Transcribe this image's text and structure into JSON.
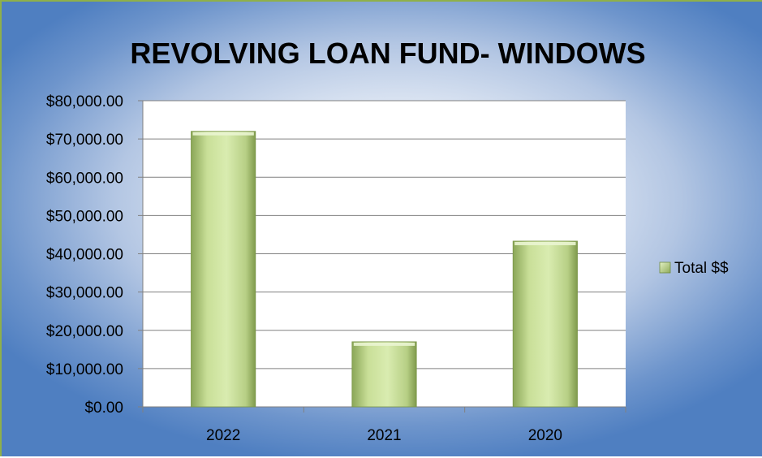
{
  "chart_data": {
    "type": "bar",
    "title": "REVOLVING LOAN FUND- WINDOWS",
    "categories": [
      "2022",
      "2021",
      "2020"
    ],
    "series": [
      {
        "name": "Total $$",
        "values": [
          72000,
          17000,
          43300
        ]
      }
    ],
    "ylim": [
      0,
      80000
    ],
    "yticks": [
      0,
      10000,
      20000,
      30000,
      40000,
      50000,
      60000,
      70000,
      80000
    ],
    "ytick_labels": [
      "$0.00",
      "$10,000.00",
      "$20,000.00",
      "$30,000.00",
      "$40,000.00",
      "$50,000.00",
      "$60,000.00",
      "$70,000.00",
      "$80,000.00"
    ],
    "grid": true,
    "legend": "right",
    "colors": {
      "bar_light": "#d9ecb0",
      "bar_dark": "#86a052",
      "background": "#5b86c5"
    }
  }
}
